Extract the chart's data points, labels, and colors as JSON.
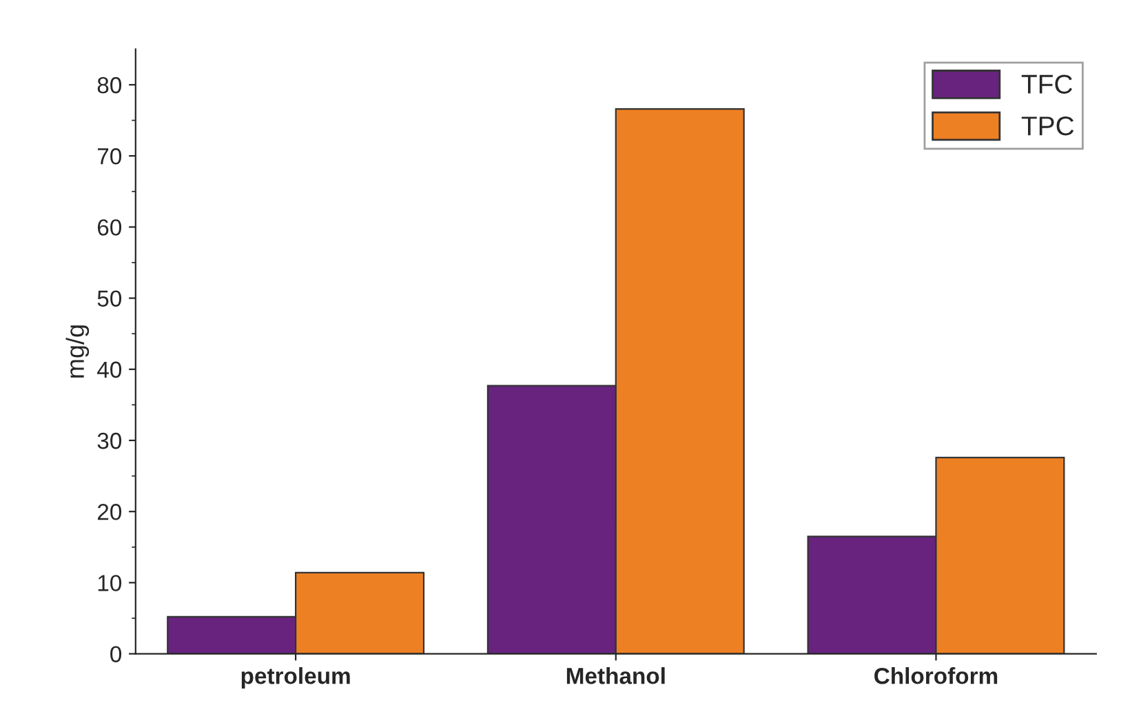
{
  "chart_data": {
    "type": "bar",
    "ylabel": "mg/g",
    "categories": [
      "petroleum",
      "Methanol",
      "Chloroform"
    ],
    "series": [
      {
        "name": "TFC",
        "color": "#68237f",
        "values": [
          5.2,
          37.7,
          16.5
        ]
      },
      {
        "name": "TPC",
        "color": "#ee8024",
        "values": [
          11.4,
          76.6,
          27.6
        ]
      }
    ],
    "ylim": [
      0,
      85
    ],
    "yticks": [
      0,
      10,
      20,
      30,
      40,
      50,
      60,
      70,
      80
    ],
    "grid": false,
    "legend": "top right"
  }
}
